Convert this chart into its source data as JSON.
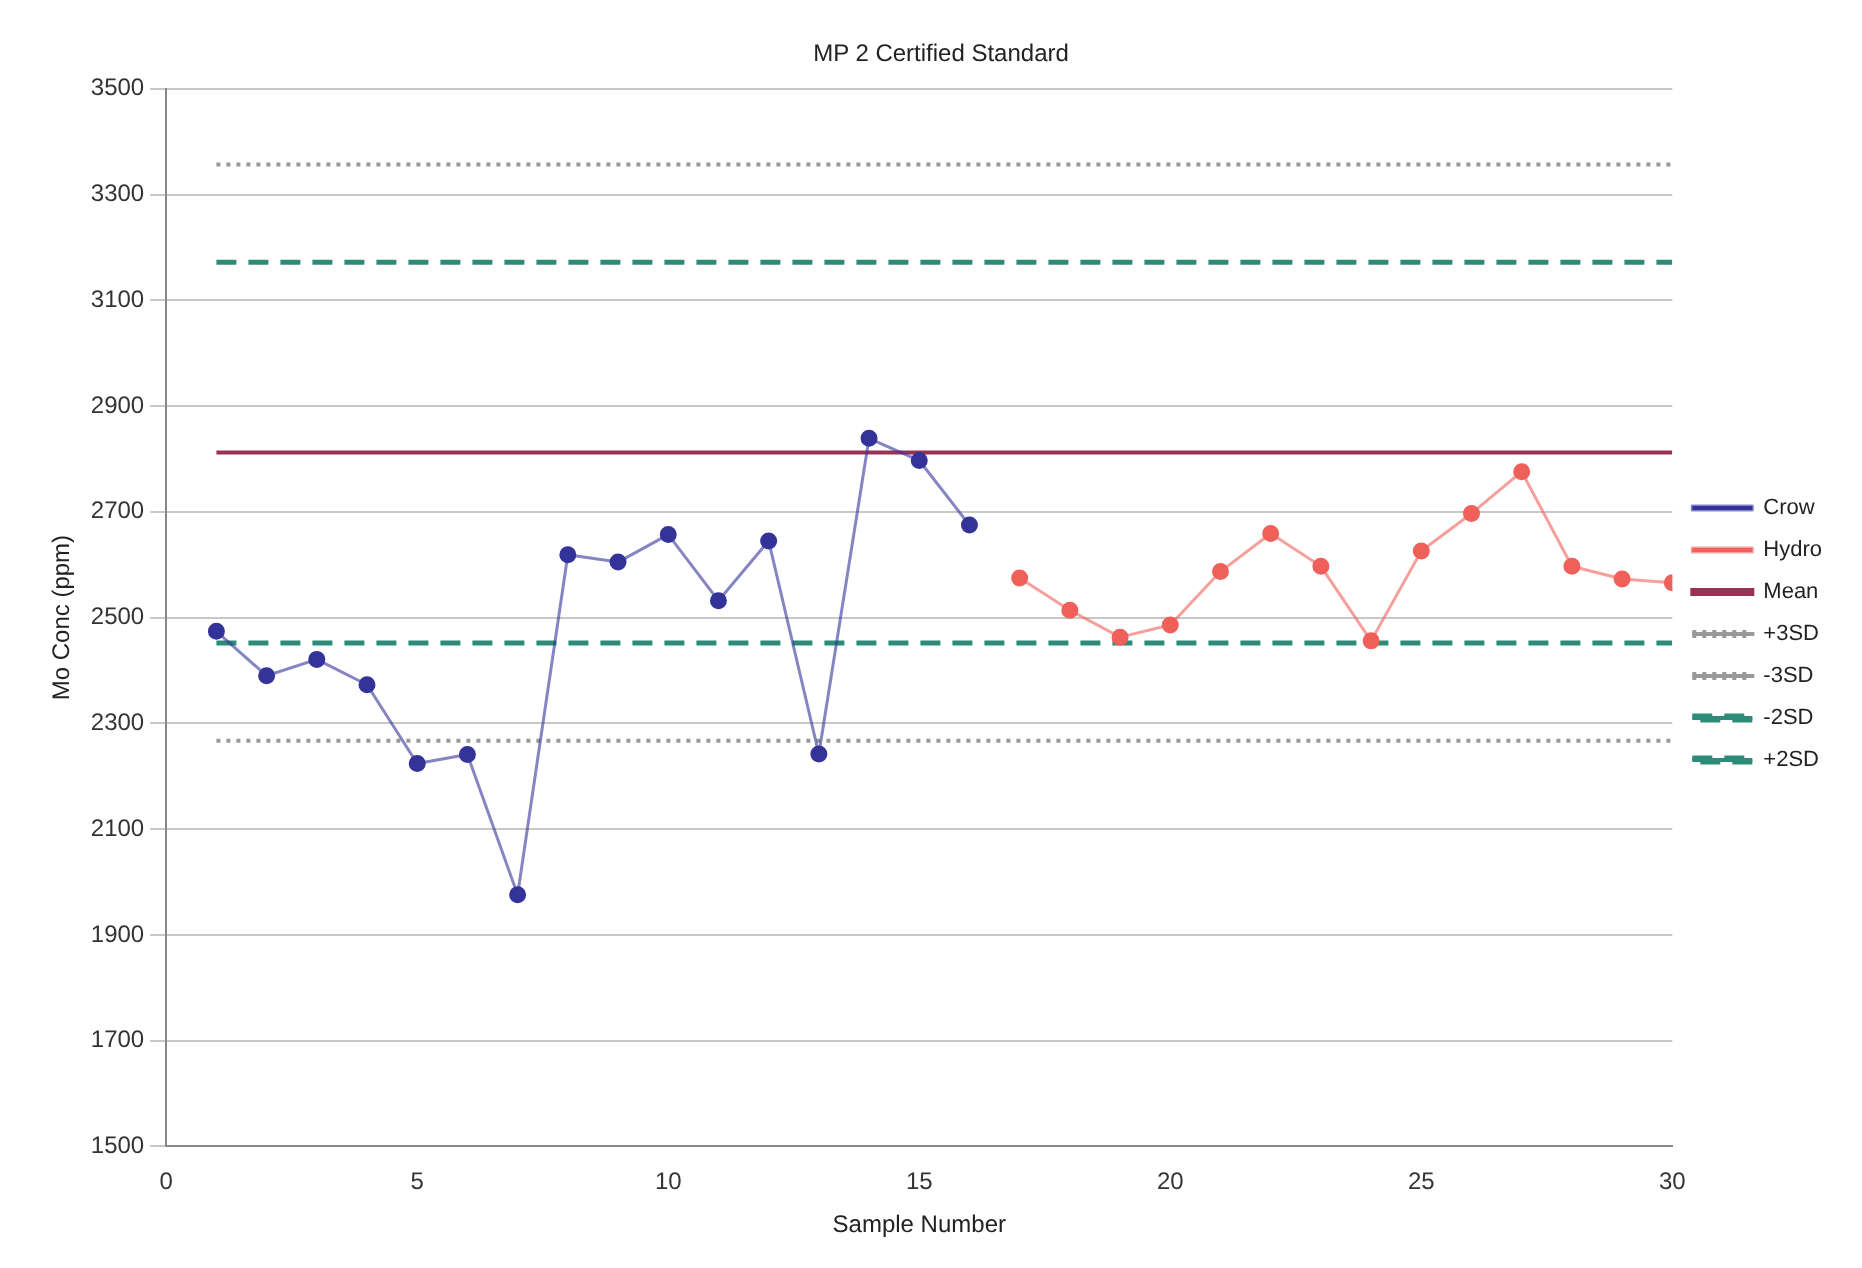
{
  "chart_data": {
    "type": "line",
    "title": "MP 2 Certified Standard",
    "xlabel": "Sample Number",
    "ylabel": "Mo Conc (ppm)",
    "xlim": [
      0,
      30
    ],
    "xticks": [
      0,
      5,
      10,
      15,
      20,
      25,
      30
    ],
    "ylim": [
      1500,
      3500
    ],
    "yticks": [
      1500,
      1700,
      1900,
      2100,
      2300,
      2500,
      2700,
      2900,
      3100,
      3300,
      3500
    ],
    "grid": "y",
    "legend": "right",
    "marker": "circle",
    "line_style": "solid",
    "series": [
      {
        "name": "Crow",
        "color": "#333399",
        "x": [
          1,
          2,
          3,
          4,
          5,
          6,
          7,
          8,
          9,
          10,
          11,
          12,
          13,
          14,
          15,
          16
        ],
        "values": [
          2474,
          2390,
          2421,
          2373,
          2224,
          2241,
          1976,
          2619,
          2605,
          2657,
          2532,
          2645,
          2242,
          2839,
          2797,
          2675
        ]
      },
      {
        "name": "Hydro",
        "color": "#f0605a",
        "x": [
          17,
          18,
          19,
          20,
          21,
          22,
          23,
          24,
          25,
          26,
          27,
          28,
          29,
          30
        ],
        "values": [
          2575,
          2514,
          2463,
          2486,
          2587,
          2659,
          2597,
          2456,
          2626,
          2697,
          2776,
          2597,
          2573,
          2566
        ]
      }
    ],
    "ref_lines": [
      {
        "axis": "y",
        "value": 2812,
        "label": "Mean",
        "color": "#993355",
        "line_style": "solid"
      },
      {
        "axis": "y",
        "value": 3357,
        "label": "+3SD",
        "color": "#999999",
        "line_style": "dotted"
      },
      {
        "axis": "y",
        "value": 2267,
        "label": "-3SD",
        "color": "#999999",
        "line_style": "dotted"
      },
      {
        "axis": "y",
        "value": 2452,
        "label": "-2SD",
        "color": "#2e8b7a",
        "line_style": "dashed"
      },
      {
        "axis": "y",
        "value": 3172,
        "label": "+2SD",
        "color": "#2e8b7a",
        "line_style": "dashed"
      }
    ]
  }
}
